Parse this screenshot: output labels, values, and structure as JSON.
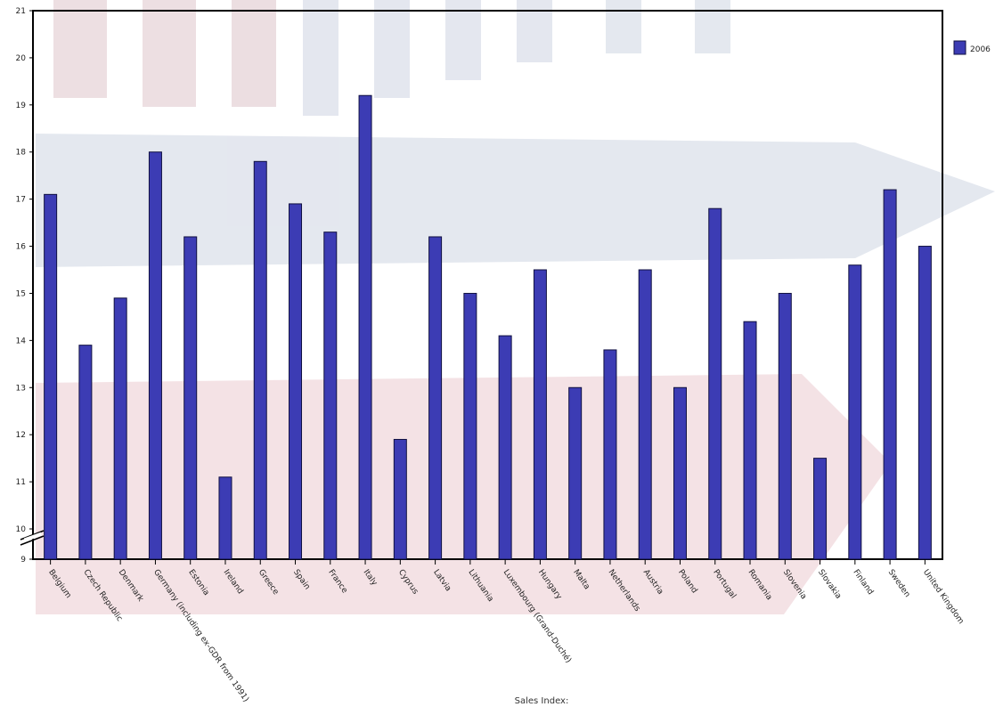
{
  "chart_data": {
    "type": "bar",
    "colors": {
      "bar": "#3c3cb4",
      "bar_edge": "#101040",
      "axis": "#000000"
    },
    "categories": [
      "Belgium",
      "Czech Republic",
      "Denmark",
      "Germany (including ex-GDR from 1991)",
      "Estonia",
      "Ireland",
      "Greece",
      "Spain",
      "France",
      "Italy",
      "Cyprus",
      "Latvia",
      "Lithuania",
      "Luxembourg (Grand-Duché)",
      "Hungary",
      "Malta",
      "Netherlands",
      "Austria",
      "Poland",
      "Portugal",
      "Romania",
      "Slovenia",
      "Slovakia",
      "Finland",
      "Sweden",
      "United Kingdom"
    ],
    "series": [
      {
        "name": "2006",
        "values": [
          17.1,
          13.9,
          14.9,
          18.0,
          16.2,
          11.1,
          17.8,
          16.9,
          16.3,
          19.2,
          11.9,
          16.2,
          15.0,
          14.1,
          15.5,
          13.0,
          13.8,
          15.5,
          13.0,
          16.8,
          14.4,
          15.0,
          11.5,
          15.6,
          17.2,
          16.0
        ]
      }
    ],
    "ylim": [
      9,
      21
    ],
    "yticks": [
      "9",
      "10",
      "11",
      "12",
      "13",
      "14",
      "15",
      "16",
      "17",
      "18",
      "19",
      "20",
      "21"
    ],
    "axis_break": true,
    "xlabel": "Sales Index:",
    "legend_position": "top-right"
  }
}
